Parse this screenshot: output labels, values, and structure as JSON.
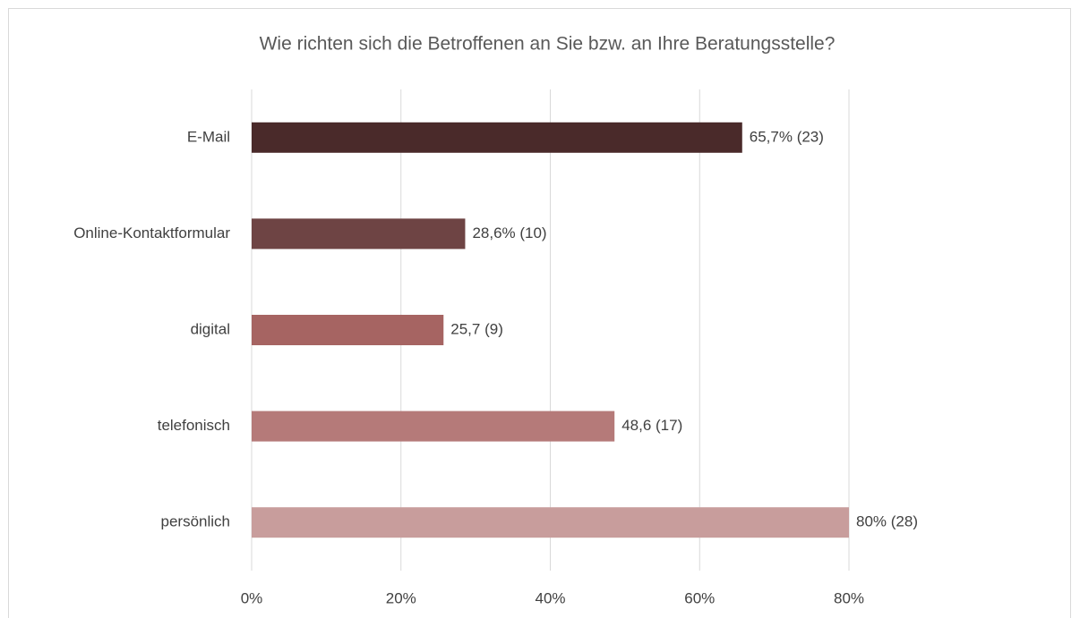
{
  "chart_data": {
    "type": "bar",
    "orientation": "horizontal",
    "title": "Wie richten sich die Betroffenen an Sie bzw. an Ihre Beratungsstelle?",
    "categories": [
      "E-Mail",
      "Online-Kontaktformular",
      "digital",
      "telefonisch",
      "persönlich"
    ],
    "values": [
      65.7,
      28.6,
      25.7,
      48.6,
      80
    ],
    "value_labels": [
      "65,7% (23)",
      "28,6% (10)",
      "25,7 (9)",
      "48,6 (17)",
      "80% (28)"
    ],
    "colors": [
      "#4a2a2a",
      "#6e4444",
      "#a66462",
      "#b57a79",
      "#c89d9c"
    ],
    "xlim": [
      0,
      80
    ],
    "xticks": [
      {
        "value": 0,
        "label": "0%"
      },
      {
        "value": 20,
        "label": "20%"
      },
      {
        "value": 40,
        "label": "40%"
      },
      {
        "value": 60,
        "label": "60%"
      },
      {
        "value": 80,
        "label": "80%"
      }
    ],
    "grid": true
  }
}
